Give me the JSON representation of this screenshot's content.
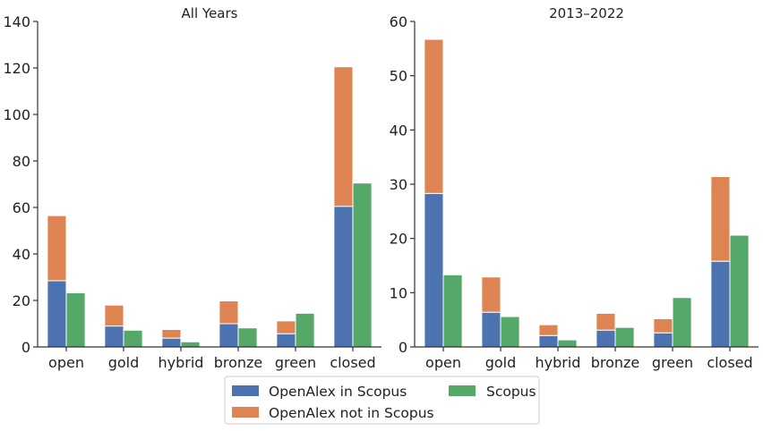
{
  "chart_data": [
    {
      "type": "bar",
      "title": "All Years",
      "categories": [
        "open",
        "gold",
        "hybrid",
        "bronze",
        "green",
        "closed"
      ],
      "ylim": [
        0,
        140
      ],
      "yticks": [
        0,
        20,
        40,
        60,
        80,
        100,
        120,
        140
      ],
      "series": [
        {
          "name": "OpenAlex in Scopus",
          "values": [
            28.5,
            9,
            3.8,
            10,
            5.7,
            60.5
          ],
          "stack": "openalex"
        },
        {
          "name": "OpenAlex not in Scopus",
          "values": [
            28,
            9,
            3.7,
            9.8,
            5.5,
            60
          ],
          "stack": "openalex"
        },
        {
          "name": "Scopus",
          "values": [
            23.3,
            7.2,
            2.2,
            8.2,
            14.5,
            70.5
          ],
          "stack": "scopus"
        }
      ]
    },
    {
      "type": "bar",
      "title": "2013–2022",
      "categories": [
        "open",
        "gold",
        "hybrid",
        "bronze",
        "green",
        "closed"
      ],
      "ylim": [
        0,
        60
      ],
      "yticks": [
        0,
        10,
        20,
        30,
        40,
        50,
        60
      ],
      "series": [
        {
          "name": "OpenAlex in Scopus",
          "values": [
            28.3,
            6.4,
            2.1,
            3.1,
            2.6,
            15.8
          ],
          "stack": "openalex"
        },
        {
          "name": "OpenAlex not in Scopus",
          "values": [
            28.4,
            6.5,
            2.0,
            3.1,
            2.6,
            15.6
          ],
          "stack": "openalex"
        },
        {
          "name": "Scopus",
          "values": [
            13.3,
            5.6,
            1.3,
            3.6,
            9.1,
            20.6
          ],
          "stack": "scopus"
        }
      ]
    }
  ],
  "legend": {
    "placement": "bottom-center",
    "items": [
      {
        "label": "OpenAlex in Scopus",
        "color": "#4c72b0"
      },
      {
        "label": "OpenAlex not in Scopus",
        "color": "#dd8452"
      },
      {
        "label": "Scopus",
        "color": "#55a868"
      }
    ]
  },
  "colors": {
    "OpenAlex in Scopus": "#4c72b0",
    "OpenAlex not in Scopus": "#dd8452",
    "Scopus": "#55a868"
  }
}
